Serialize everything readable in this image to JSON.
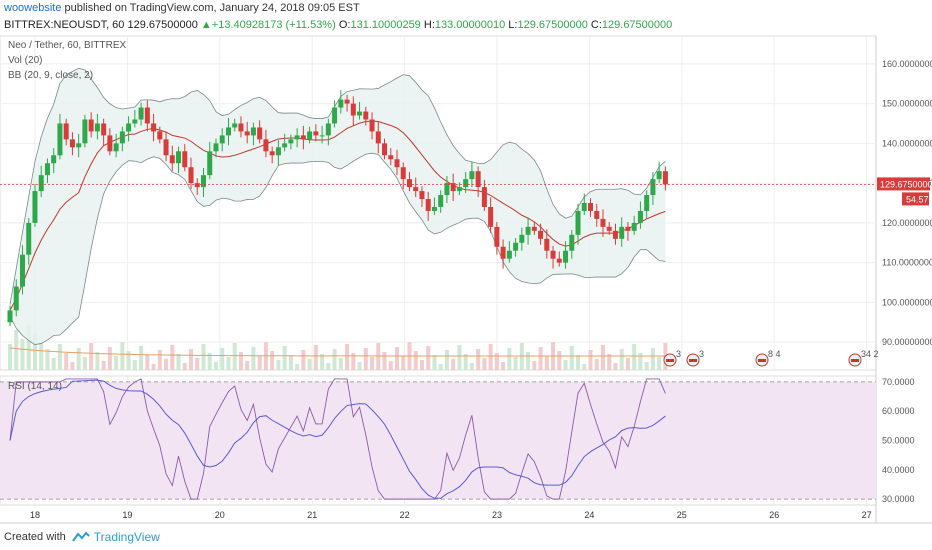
{
  "header": {
    "publisher": "woowebsite",
    "published_text": "published on TradingView.com, January 24, 2018 09:05 EST",
    "symbol": "BITTREX:NEOUSDT, 60",
    "last_price": "129.67500000",
    "change_arrow": "▲",
    "change": "+13.40928173 (+11.53%)",
    "o_label": "O:",
    "o_val": "131.10000259",
    "h_label": "H:",
    "h_val": "133.00000010",
    "l_label": "L:",
    "l_val": "129.67500000",
    "c_label": "C:",
    "c_val": "129.67500000"
  },
  "legend": {
    "pair": "Neo / Tether, 60, BITTREX",
    "vol": "Vol (20)",
    "bb": "BB (20, 9, close, 2)",
    "rsi": "RSI (14, 14)"
  },
  "price_tag": "129.67500000",
  "vol_tag": "54.57",
  "events": [
    "3",
    "3",
    "8 4",
    "34 2"
  ],
  "footer": {
    "created": "Created with",
    "brand": "TradingView"
  },
  "colors": {
    "up": "#2ea84a",
    "down": "#d93a3a",
    "bb_band": "#7a8a8a",
    "bb_fill": "#e6f1ef",
    "bb_mid": "#c0392b",
    "rsi_line": "#8a5aa8",
    "rsi_ma": "#5a5ad6",
    "rsi_bg": "#f3e4f3",
    "price_line": "#d93a3a",
    "grid": "#eeeeee",
    "vol_ma": "#e8a060"
  },
  "chart_data": {
    "type": "candlestick",
    "x_ticks": [
      "18",
      "19",
      "20",
      "21",
      "22",
      "23",
      "24",
      "25",
      "26",
      "27"
    ],
    "price_ticks": [
      "160.00000000",
      "150.00000000",
      "140.00000000",
      "130.00000000",
      "120.00000000",
      "110.00000000",
      "100.00000000",
      "90.00000000"
    ],
    "price_range": [
      83,
      167
    ],
    "rsi_ticks": [
      "70.0000",
      "60.0000",
      "50.0000",
      "40.0000",
      "30.0000"
    ],
    "rsi_range": [
      28,
      72
    ],
    "rsi_levels": [
      70,
      30
    ],
    "last_close": 129.675,
    "closes": [
      98,
      104,
      112,
      120,
      128,
      132,
      135,
      137,
      145,
      141,
      139,
      140,
      146,
      143,
      145,
      142,
      138,
      140,
      143,
      145,
      146,
      149,
      145,
      143,
      141,
      137,
      135,
      138,
      134,
      130,
      129,
      132,
      138,
      140,
      142,
      144,
      145,
      143,
      142,
      144,
      141,
      138,
      137,
      139,
      140,
      141,
      142,
      141,
      143,
      142,
      142,
      145,
      149,
      151,
      150,
      147,
      148,
      146,
      143,
      140,
      137,
      136,
      134,
      131,
      129,
      128,
      126,
      123,
      124,
      127,
      130,
      128,
      129,
      131,
      133,
      129,
      124,
      119,
      114,
      111,
      113,
      115,
      117,
      119,
      118,
      116,
      113,
      111,
      110,
      113,
      117,
      123,
      125,
      123,
      121,
      119,
      118,
      116,
      119,
      118,
      120,
      123,
      127,
      131,
      133,
      129.675
    ]
  }
}
